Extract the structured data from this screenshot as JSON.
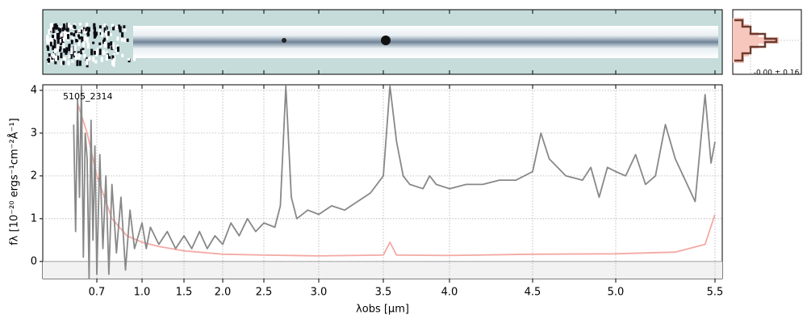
{
  "chart_data": {
    "type": "line",
    "xlabel": "λobs [μm]",
    "ylabel": "fλ [10⁻²⁰ ergs⁻¹cm⁻²Å⁻¹]",
    "annotation": "5105_2314",
    "stats_label": "-0.00 ± 0.16",
    "xlim": [
      0.42,
      5.53
    ],
    "ylim": [
      -0.4,
      4.13
    ],
    "xticks": [
      0.7,
      {
        "value": 1,
        "label": "1.0"
      },
      1.5,
      {
        "value": 2,
        "label": "2.0"
      },
      2.5,
      {
        "value": 3,
        "label": "3.0"
      },
      3.5,
      {
        "value": 4,
        "label": "4.0"
      },
      4.5,
      {
        "value": 5,
        "label": "5.0"
      },
      5.5
    ],
    "yticks": [
      0,
      1,
      2,
      3,
      4
    ],
    "grid": true,
    "series": [
      {
        "color": "#f4a9a3",
        "x": [
          0.6,
          0.65,
          0.7,
          0.8,
          0.9,
          1.0,
          1.2,
          1.5,
          2.0,
          2.5,
          3.0,
          3.5,
          3.55,
          3.6,
          4.0,
          4.5,
          5.0,
          5.3,
          5.45,
          5.5
        ],
        "values": [
          3.7,
          3.0,
          2.0,
          1.0,
          0.6,
          0.45,
          0.35,
          0.25,
          0.17,
          0.15,
          0.13,
          0.15,
          0.45,
          0.15,
          0.14,
          0.17,
          0.18,
          0.22,
          0.4,
          1.1
        ]
      },
      {
        "color": "#888888",
        "x": [
          0.58,
          0.59,
          0.6,
          0.61,
          0.62,
          0.63,
          0.64,
          0.65,
          0.66,
          0.67,
          0.68,
          0.69,
          0.7,
          0.72,
          0.74,
          0.76,
          0.78,
          0.8,
          0.83,
          0.86,
          0.89,
          0.92,
          0.95,
          1.0,
          1.05,
          1.1,
          1.2,
          1.3,
          1.4,
          1.5,
          1.6,
          1.7,
          1.8,
          1.9,
          2.0,
          2.1,
          2.2,
          2.3,
          2.4,
          2.5,
          2.6,
          2.65,
          2.7,
          2.75,
          2.8,
          2.9,
          3.0,
          3.1,
          3.2,
          3.3,
          3.4,
          3.5,
          3.55,
          3.6,
          3.65,
          3.7,
          3.8,
          3.85,
          3.9,
          4.0,
          4.1,
          4.2,
          4.3,
          4.4,
          4.5,
          4.55,
          4.6,
          4.7,
          4.8,
          4.85,
          4.9,
          4.95,
          5.0,
          5.05,
          5.1,
          5.15,
          5.2,
          5.25,
          5.3,
          5.35,
          5.4,
          5.45,
          5.48,
          5.5
        ],
        "values": [
          3.2,
          0.7,
          3.8,
          1.5,
          4.1,
          0.1,
          3.0,
          2.4,
          -0.4,
          3.3,
          0.5,
          2.7,
          -0.3,
          2.5,
          0.3,
          2.0,
          -0.3,
          1.8,
          0.2,
          1.5,
          -0.2,
          1.2,
          0.3,
          0.9,
          0.3,
          0.8,
          0.4,
          0.7,
          0.3,
          0.6,
          0.3,
          0.7,
          0.3,
          0.6,
          0.4,
          0.9,
          0.6,
          1.0,
          0.7,
          0.9,
          0.8,
          1.3,
          4.1,
          1.5,
          1.0,
          1.2,
          1.1,
          1.3,
          1.2,
          1.4,
          1.6,
          2.0,
          4.1,
          2.8,
          2.0,
          1.8,
          1.7,
          2.0,
          1.8,
          1.7,
          1.8,
          1.8,
          1.9,
          1.9,
          2.1,
          3.0,
          2.4,
          2.0,
          1.9,
          2.2,
          1.5,
          2.2,
          2.1,
          2.0,
          2.5,
          1.8,
          2.0,
          3.2,
          2.4,
          1.9,
          1.4,
          3.9,
          2.3,
          2.8
        ]
      }
    ]
  }
}
